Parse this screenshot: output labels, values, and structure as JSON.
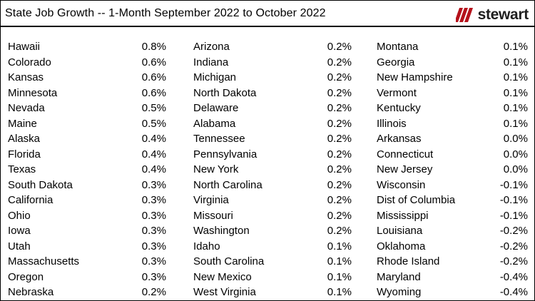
{
  "header": {
    "title": "State Job Growth -- 1-Month September 2022 to October 2022",
    "logo_text": "stewart",
    "logo_icon": "stewart-logo-icon",
    "accent_color": "#b5121b"
  },
  "columns": [
    {
      "rows": [
        {
          "state": "Hawaii",
          "value": "0.8%"
        },
        {
          "state": "Colorado",
          "value": "0.6%"
        },
        {
          "state": "Kansas",
          "value": "0.6%"
        },
        {
          "state": "Minnesota",
          "value": "0.6%"
        },
        {
          "state": "Nevada",
          "value": "0.5%"
        },
        {
          "state": "Maine",
          "value": "0.5%"
        },
        {
          "state": "Alaska",
          "value": "0.4%"
        },
        {
          "state": "Florida",
          "value": "0.4%"
        },
        {
          "state": "Texas",
          "value": "0.4%"
        },
        {
          "state": "South Dakota",
          "value": "0.3%"
        },
        {
          "state": "California",
          "value": "0.3%"
        },
        {
          "state": "Ohio",
          "value": "0.3%"
        },
        {
          "state": "Iowa",
          "value": "0.3%"
        },
        {
          "state": "Utah",
          "value": "0.3%"
        },
        {
          "state": "Massachusetts",
          "value": "0.3%"
        },
        {
          "state": "Oregon",
          "value": "0.3%"
        },
        {
          "state": "Nebraska",
          "value": "0.2%"
        }
      ]
    },
    {
      "rows": [
        {
          "state": "Arizona",
          "value": "0.2%"
        },
        {
          "state": "Indiana",
          "value": "0.2%"
        },
        {
          "state": "Michigan",
          "value": "0.2%"
        },
        {
          "state": "North Dakota",
          "value": "0.2%"
        },
        {
          "state": "Delaware",
          "value": "0.2%"
        },
        {
          "state": "Alabama",
          "value": "0.2%"
        },
        {
          "state": "Tennessee",
          "value": "0.2%"
        },
        {
          "state": "Pennsylvania",
          "value": "0.2%"
        },
        {
          "state": "New York",
          "value": "0.2%"
        },
        {
          "state": "North Carolina",
          "value": "0.2%"
        },
        {
          "state": "Virginia",
          "value": "0.2%"
        },
        {
          "state": "Missouri",
          "value": "0.2%"
        },
        {
          "state": "Washington",
          "value": "0.2%"
        },
        {
          "state": "Idaho",
          "value": "0.1%"
        },
        {
          "state": "South Carolina",
          "value": "0.1%"
        },
        {
          "state": "New Mexico",
          "value": "0.1%"
        },
        {
          "state": "West Virginia",
          "value": "0.1%"
        }
      ]
    },
    {
      "rows": [
        {
          "state": "Montana",
          "value": "0.1%"
        },
        {
          "state": "Georgia",
          "value": "0.1%"
        },
        {
          "state": "New Hampshire",
          "value": "0.1%"
        },
        {
          "state": "Vermont",
          "value": "0.1%"
        },
        {
          "state": "Kentucky",
          "value": "0.1%"
        },
        {
          "state": "Illinois",
          "value": "0.1%"
        },
        {
          "state": "Arkansas",
          "value": "0.0%"
        },
        {
          "state": "Connecticut",
          "value": "0.0%"
        },
        {
          "state": "New Jersey",
          "value": "0.0%"
        },
        {
          "state": "Wisconsin",
          "value": "-0.1%"
        },
        {
          "state": "Dist of Columbia",
          "value": "-0.1%"
        },
        {
          "state": "Mississippi",
          "value": "-0.1%"
        },
        {
          "state": "Louisiana",
          "value": "-0.2%"
        },
        {
          "state": "Oklahoma",
          "value": "-0.2%"
        },
        {
          "state": "Rhode Island",
          "value": "-0.2%"
        },
        {
          "state": "Maryland",
          "value": "-0.4%"
        },
        {
          "state": "Wyoming",
          "value": "-0.4%"
        }
      ]
    }
  ]
}
